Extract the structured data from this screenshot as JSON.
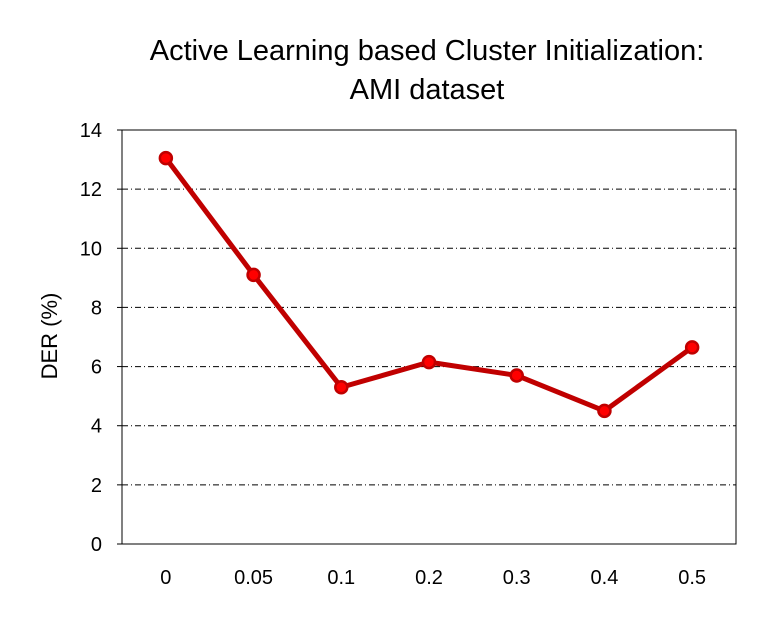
{
  "chart_data": {
    "type": "line",
    "title_lines": [
      "Active Learning based Cluster Initialization:",
      "AMI dataset"
    ],
    "xlabel": "",
    "ylabel": "DER (%)",
    "categories": [
      "0",
      "0.05",
      "0.1",
      "0.2",
      "0.3",
      "0.4",
      "0.5"
    ],
    "series": [
      {
        "values": [
          13.05,
          9.1,
          5.3,
          6.15,
          5.7,
          4.5,
          6.65
        ]
      }
    ],
    "ylim": [
      0,
      14
    ],
    "yticks": [
      "0",
      "2",
      "4",
      "6",
      "8",
      "10",
      "12",
      "14"
    ],
    "grid": "horizontal-dash-dot",
    "legend": "none",
    "colors": {
      "line": "#c00000",
      "marker_fill": "#ff0000",
      "marker_edge": "#c00000",
      "grid": "#000000"
    }
  }
}
